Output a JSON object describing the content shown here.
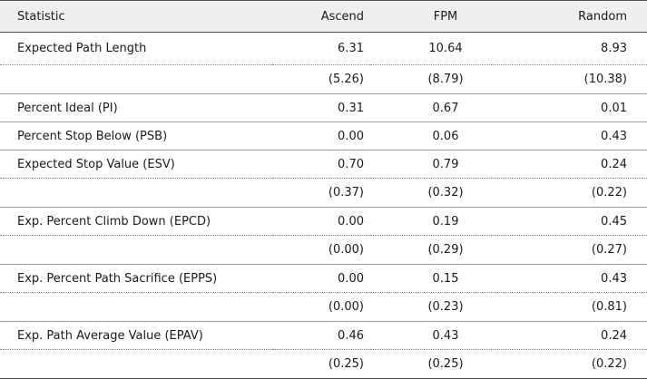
{
  "table": {
    "headers": {
      "statistic": "Statistic",
      "ascend": "Ascend",
      "fpm": "FPM",
      "random": "Random"
    },
    "rows": [
      {
        "label": "Expected Path Length",
        "ascend": "6.31",
        "fpm": "10.64",
        "random": "8.93"
      },
      {
        "label": "",
        "ascend": "(5.26)",
        "fpm": "(8.79)",
        "random": "(10.38)"
      },
      {
        "label": "Percent Ideal (PI)",
        "ascend": "0.31",
        "fpm": "0.67",
        "random": "0.01"
      },
      {
        "label": "Percent Stop Below (PSB)",
        "ascend": "0.00",
        "fpm": "0.06",
        "random": "0.43"
      },
      {
        "label": "Expected Stop Value (ESV)",
        "ascend": "0.70",
        "fpm": "0.79",
        "random": "0.24"
      },
      {
        "label": "",
        "ascend": "(0.37)",
        "fpm": "(0.32)",
        "random": "(0.22)"
      },
      {
        "label": "Exp. Percent Climb Down (EPCD)",
        "ascend": "0.00",
        "fpm": "0.19",
        "random": "0.45"
      },
      {
        "label": "",
        "ascend": "(0.00)",
        "fpm": "(0.29)",
        "random": "(0.27)"
      },
      {
        "label": "Exp. Percent Path Sacrifice (EPPS)",
        "ascend": "0.00",
        "fpm": "0.15",
        "random": "0.43"
      },
      {
        "label": "",
        "ascend": "(0.00)",
        "fpm": "(0.23)",
        "random": "(0.81)"
      },
      {
        "label": "Exp. Path Average Value (EPAV)",
        "ascend": "0.46",
        "fpm": "0.43",
        "random": "0.24"
      },
      {
        "label": "",
        "ascend": "(0.25)",
        "fpm": "(0.25)",
        "random": "(0.22)"
      }
    ]
  }
}
